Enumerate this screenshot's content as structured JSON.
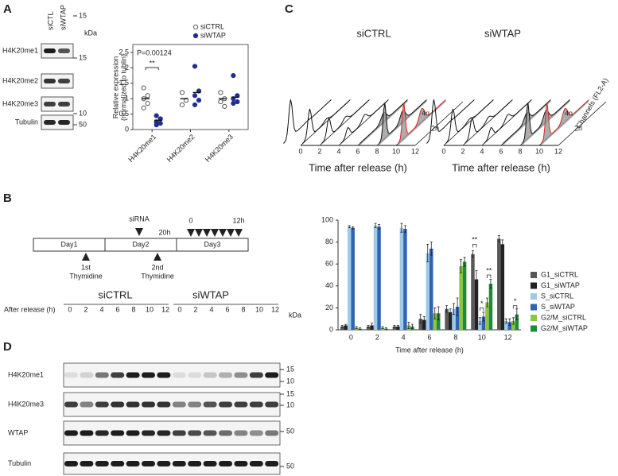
{
  "panels": {
    "a": "A",
    "b": "B",
    "c": "C",
    "d": "D"
  },
  "blot_a": {
    "lanes": [
      "siCTL",
      "siWTAP"
    ],
    "unit": "kDa",
    "rows": [
      "H4K20me1",
      "H4K20me2",
      "H4K20me3",
      "Tubulin"
    ],
    "markers": [
      15,
      15,
      10,
      50
    ]
  },
  "flow": {
    "conditions": [
      "siCTRL",
      "siWTAP"
    ],
    "xticks": [
      0,
      2,
      4,
      6,
      8,
      10,
      12
    ],
    "xlabel": "Time after release (h)",
    "peaks": [
      "4n",
      "2n"
    ],
    "channel_label": "Channels (FL2-A)"
  },
  "timeline": {
    "days": [
      "Day1",
      "Day2",
      "Day3"
    ],
    "sirna": "siRNA",
    "gap": "20h",
    "start": "0",
    "end": "12h",
    "first": [
      "1st",
      "Thymidine"
    ],
    "second": [
      "2nd",
      "Thymidine"
    ]
  },
  "blot_d": {
    "groups": [
      "siCTRL",
      "siWTAP"
    ],
    "lane_header": "After release (h)",
    "lanes": [
      0,
      2,
      4,
      6,
      8,
      10,
      12
    ],
    "unit": "kDa",
    "rows": [
      {
        "label": "H4K20me1",
        "markers": [
          15,
          10
        ]
      },
      {
        "label": "H4K20me3",
        "markers": [
          15,
          10
        ]
      },
      {
        "label": "WTAP",
        "markers": [
          50
        ]
      },
      {
        "label": "Tubulin",
        "markers": [
          50
        ]
      }
    ]
  },
  "chart_data": [
    {
      "type": "strip",
      "ylabel": [
        "Relative expression",
        "(normalized to tublin)"
      ],
      "categories": [
        "H4K20me1",
        "H4K20me2",
        "H4K20me3"
      ],
      "ylim": [
        0,
        2.5
      ],
      "yticks": [
        0,
        0.5,
        1,
        1.5,
        2,
        2.5
      ],
      "annotations": [
        "P=0.00124",
        "**"
      ],
      "series": [
        {
          "name": "siCTRL",
          "color": "#555555",
          "filled": false,
          "values": [
            [
              1.35,
              1.1,
              1.0,
              0.85,
              0.7
            ],
            [
              1.2,
              0.95,
              0.8
            ],
            [
              1.2,
              1.0,
              0.9,
              0.75
            ]
          ],
          "means": [
            1.0,
            1.0,
            1.0
          ]
        },
        {
          "name": "siWTAP",
          "color": "#1f2f8f",
          "filled": true,
          "values": [
            [
              0.45,
              0.35,
              0.25,
              0.2,
              0.15
            ],
            [
              2.05,
              1.25,
              1.1,
              0.95,
              0.8
            ],
            [
              1.75,
              1.1,
              1.0,
              0.9,
              0.85
            ]
          ],
          "means": [
            0.3,
            1.2,
            1.05
          ]
        }
      ]
    },
    {
      "type": "bar",
      "xlabel": "Time after release (h)",
      "categories": [
        "0",
        "2",
        "4",
        "6",
        "8",
        "10",
        "12"
      ],
      "ylim": [
        0,
        100
      ],
      "yticks": [
        0,
        20,
        40,
        60,
        80,
        100
      ],
      "annotations": [
        "**",
        "*",
        "**",
        "*"
      ],
      "series": [
        {
          "name": "G1_siCTRL",
          "color": "#595959",
          "values": [
            3,
            3,
            3,
            10,
            19,
            69,
            83
          ],
          "errors": [
            1,
            1,
            1,
            4,
            3,
            3,
            3
          ]
        },
        {
          "name": "G1_siWTAP",
          "color": "#222222",
          "values": [
            4,
            4,
            3,
            9,
            16,
            46,
            78
          ],
          "errors": [
            1,
            2,
            1,
            3,
            3,
            8,
            4
          ]
        },
        {
          "name": "S_siCTRL",
          "color": "#9ecae9",
          "values": [
            94,
            95,
            93,
            70,
            19,
            8,
            8
          ],
          "errors": [
            1,
            2,
            4,
            8,
            5,
            3,
            2
          ]
        },
        {
          "name": "S_siWTAP",
          "color": "#2f64b0",
          "values": [
            93,
            94,
            92,
            74,
            21,
            12,
            7
          ],
          "errors": [
            1,
            2,
            3,
            6,
            8,
            4,
            3
          ]
        },
        {
          "name": "G2/M_siCTRL",
          "color": "#8cc63f",
          "values": [
            2,
            2,
            4,
            15,
            58,
            25,
            8
          ],
          "errors": [
            1,
            1,
            3,
            5,
            6,
            4,
            3
          ]
        },
        {
          "name": "G2/M_siWTAP",
          "color": "#1f8a3c",
          "values": [
            1,
            1,
            3,
            15,
            62,
            42,
            14
          ],
          "errors": [
            1,
            1,
            2,
            6,
            4,
            4,
            5
          ]
        }
      ]
    }
  ]
}
